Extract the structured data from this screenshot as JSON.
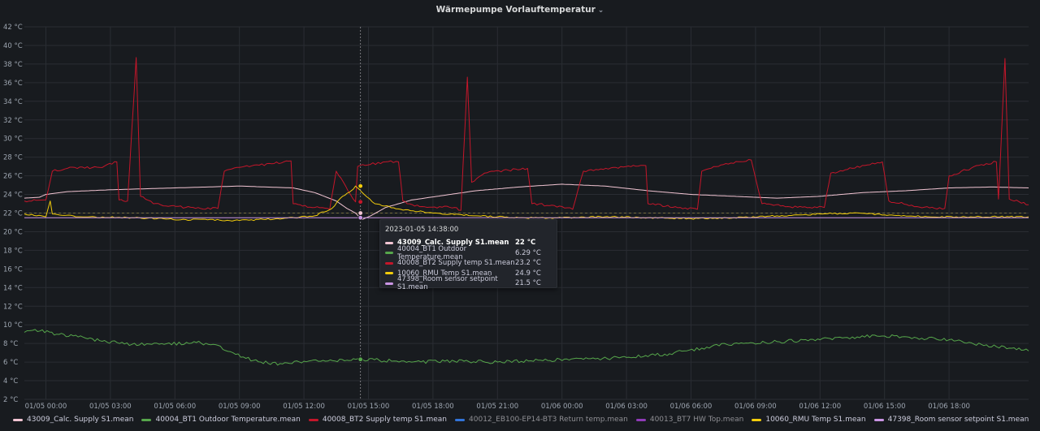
{
  "panel": {
    "title": "Wärmepumpe Vorlauftemperatur",
    "title_chevron": "⌄"
  },
  "chart_data": {
    "type": "line",
    "title": "Wärmepumpe Vorlauftemperatur",
    "y_unit": "°C",
    "ylim": [
      2,
      42
    ],
    "y_ticks": [
      "2 °C",
      "4 °C",
      "6 °C",
      "8 °C",
      "10 °C",
      "12 °C",
      "14 °C",
      "16 °C",
      "18 °C",
      "20 °C",
      "22 °C",
      "24 °C",
      "26 °C",
      "28 °C",
      "30 °C",
      "32 °C",
      "34 °C",
      "36 °C",
      "38 °C",
      "40 °C",
      "42 °C"
    ],
    "x_ticks": [
      "01/05 00:00",
      "01/05 03:00",
      "01/05 06:00",
      "01/05 09:00",
      "01/05 12:00",
      "01/05 15:00",
      "01/05 18:00",
      "01/05 21:00",
      "01/06 00:00",
      "01/06 03:00",
      "01/06 06:00",
      "01/06 09:00",
      "01/06 12:00",
      "01/06 15:00",
      "01/06 18:00"
    ],
    "x_range_hours": [
      -1.0,
      45.7
    ],
    "grid": true,
    "legend_position": "bottom",
    "series": [
      {
        "name": "43009_Calc. Supply S1.mean",
        "color": "#f2c5d3",
        "points": [
          [
            -1.0,
            23.6
          ],
          [
            -0.3,
            23.7
          ],
          [
            0.0,
            24.0
          ],
          [
            1.0,
            24.3
          ],
          [
            3.0,
            24.5
          ],
          [
            6.0,
            24.7
          ],
          [
            9.0,
            24.9
          ],
          [
            11.5,
            24.7
          ],
          [
            12.5,
            24.2
          ],
          [
            13.5,
            23.3
          ],
          [
            14.0,
            22.5
          ],
          [
            14.4,
            22.0
          ],
          [
            14.7,
            21.3
          ],
          [
            15.1,
            21.7
          ],
          [
            15.8,
            22.6
          ],
          [
            17.0,
            23.4
          ],
          [
            18.5,
            23.9
          ],
          [
            20.0,
            24.4
          ],
          [
            22.0,
            24.8
          ],
          [
            24.0,
            25.1
          ],
          [
            26.0,
            24.9
          ],
          [
            28.0,
            24.4
          ],
          [
            30.0,
            24.0
          ],
          [
            32.0,
            23.8
          ],
          [
            34.0,
            23.6
          ],
          [
            36.0,
            23.8
          ],
          [
            38.0,
            24.2
          ],
          [
            40.0,
            24.4
          ],
          [
            42.0,
            24.7
          ],
          [
            44.0,
            24.8
          ],
          [
            45.7,
            24.7
          ]
        ]
      },
      {
        "name": "40004_BT1 Outdoor Temperature.mean",
        "color": "#56a64b",
        "points": [
          [
            -1.0,
            9.2
          ],
          [
            -0.5,
            9.5
          ],
          [
            0.5,
            9.0
          ],
          [
            1.5,
            8.7
          ],
          [
            2.5,
            8.3
          ],
          [
            4.0,
            7.9
          ],
          [
            5.5,
            7.9
          ],
          [
            7.0,
            8.1
          ],
          [
            8.0,
            7.8
          ],
          [
            8.7,
            7.0
          ],
          [
            9.3,
            6.4
          ],
          [
            10.0,
            6.0
          ],
          [
            11.0,
            5.8
          ],
          [
            12.0,
            6.1
          ],
          [
            13.0,
            6.1
          ],
          [
            14.0,
            6.2
          ],
          [
            14.4,
            6.3
          ],
          [
            15.5,
            6.2
          ],
          [
            17.0,
            6.0
          ],
          [
            19.0,
            6.1
          ],
          [
            21.0,
            6.0
          ],
          [
            23.0,
            6.2
          ],
          [
            25.0,
            6.3
          ],
          [
            27.0,
            6.5
          ],
          [
            29.0,
            6.9
          ],
          [
            30.5,
            7.5
          ],
          [
            32.0,
            8.0
          ],
          [
            34.0,
            8.2
          ],
          [
            36.0,
            8.4
          ],
          [
            37.5,
            8.7
          ],
          [
            39.0,
            8.8
          ],
          [
            40.5,
            8.6
          ],
          [
            42.0,
            8.4
          ],
          [
            43.5,
            7.9
          ],
          [
            44.8,
            7.5
          ],
          [
            45.7,
            7.2
          ]
        ]
      },
      {
        "name": "40008_BT2 Supply temp S1.mean",
        "color": "#c4162a",
        "points": [
          [
            -1.0,
            23.3
          ],
          [
            0.0,
            23.4
          ],
          [
            0.3,
            26.5
          ],
          [
            1.0,
            26.8
          ],
          [
            2.5,
            26.9
          ],
          [
            3.3,
            27.5
          ],
          [
            3.4,
            23.4
          ],
          [
            3.8,
            23.3
          ],
          [
            4.2,
            38.7
          ],
          [
            4.4,
            23.8
          ],
          [
            5.0,
            23.0
          ],
          [
            6.5,
            22.6
          ],
          [
            8.0,
            22.5
          ],
          [
            8.3,
            26.5
          ],
          [
            9.0,
            26.9
          ],
          [
            10.5,
            27.3
          ],
          [
            11.4,
            27.6
          ],
          [
            11.5,
            23.0
          ],
          [
            12.5,
            22.6
          ],
          [
            13.2,
            22.4
          ],
          [
            13.5,
            26.5
          ],
          [
            14.5,
            27.0
          ],
          [
            15.8,
            27.5
          ],
          [
            16.4,
            27.5
          ],
          [
            16.6,
            23.3
          ],
          [
            16.8,
            23.0
          ],
          [
            14.4,
            23.2
          ],
          [
            17.5,
            22.7
          ],
          [
            19.0,
            22.6
          ],
          [
            19.3,
            22.3
          ],
          [
            19.6,
            36.6
          ],
          [
            19.8,
            25.3
          ],
          [
            20.4,
            26.3
          ],
          [
            21.5,
            26.6
          ],
          [
            22.4,
            26.8
          ],
          [
            22.6,
            23.0
          ],
          [
            24.0,
            22.7
          ],
          [
            24.5,
            22.4
          ],
          [
            25.0,
            26.5
          ],
          [
            26.5,
            26.9
          ],
          [
            27.9,
            27.1
          ],
          [
            28.0,
            23.0
          ],
          [
            29.5,
            22.6
          ],
          [
            30.3,
            22.4
          ],
          [
            30.5,
            26.5
          ],
          [
            31.5,
            27.2
          ],
          [
            32.8,
            27.7
          ],
          [
            33.3,
            23.0
          ],
          [
            34.5,
            22.7
          ],
          [
            36.2,
            22.6
          ],
          [
            36.5,
            26.3
          ],
          [
            37.5,
            26.8
          ],
          [
            38.9,
            27.5
          ],
          [
            39.2,
            23.3
          ],
          [
            40.5,
            22.7
          ],
          [
            41.8,
            22.5
          ],
          [
            42.0,
            26.0
          ],
          [
            43.5,
            27.2
          ],
          [
            44.2,
            27.5
          ],
          [
            44.3,
            23.5
          ],
          [
            44.6,
            38.6
          ],
          [
            44.8,
            23.5
          ],
          [
            45.7,
            22.9
          ]
        ]
      },
      {
        "name": "40012_EB100-EP14-BT3 Return temp.mean",
        "color": "#3274d9",
        "legend_dim": true,
        "points": []
      },
      {
        "name": "40013_BT7 HW Top.mean",
        "color": "#8f3bb8",
        "legend_dim": true,
        "points": []
      },
      {
        "name": "10060_RMU Temp S1.mean",
        "color": "#f2cc0c",
        "points": [
          [
            -1.0,
            21.9
          ],
          [
            -0.2,
            21.7
          ],
          [
            0.0,
            21.6
          ],
          [
            0.2,
            23.3
          ],
          [
            0.3,
            21.9
          ],
          [
            1.5,
            21.6
          ],
          [
            4.0,
            21.5
          ],
          [
            6.5,
            21.3
          ],
          [
            9.0,
            21.2
          ],
          [
            11.0,
            21.4
          ],
          [
            12.5,
            21.7
          ],
          [
            13.3,
            22.5
          ],
          [
            13.8,
            23.8
          ],
          [
            14.2,
            24.4
          ],
          [
            14.4,
            24.9
          ],
          [
            14.8,
            24.0
          ],
          [
            15.3,
            23.0
          ],
          [
            16.5,
            22.4
          ],
          [
            18.0,
            22.0
          ],
          [
            20.0,
            21.7
          ],
          [
            22.0,
            21.5
          ],
          [
            24.0,
            21.5
          ],
          [
            26.0,
            21.6
          ],
          [
            28.0,
            21.5
          ],
          [
            30.0,
            21.4
          ],
          [
            32.0,
            21.5
          ],
          [
            34.0,
            21.7
          ],
          [
            36.0,
            21.9
          ],
          [
            37.5,
            22.0
          ],
          [
            39.0,
            21.8
          ],
          [
            41.0,
            21.6
          ],
          [
            43.0,
            21.6
          ],
          [
            45.7,
            21.6
          ]
        ]
      },
      {
        "name": "47398_Room sensor setpoint S1.mean",
        "color": "#ca95e5",
        "points": [
          [
            -1.0,
            21.5
          ],
          [
            45.7,
            21.5
          ]
        ]
      }
    ],
    "threshold_dashed_y": 22,
    "cursor_x_hours": 14.63
  },
  "tooltip": {
    "time": "2023-01-05 14:38:00",
    "rows": [
      {
        "name": "43009_Calc. Supply S1.mean",
        "value": "22 °C",
        "color": "#f2c5d3",
        "bold": true
      },
      {
        "name": "40004_BT1 Outdoor Temperature.mean",
        "value": "6.29 °C",
        "color": "#56a64b",
        "bold": false
      },
      {
        "name": "40008_BT2 Supply temp S1.mean",
        "value": "23.2 °C",
        "color": "#c4162a",
        "bold": false
      },
      {
        "name": "10060_RMU Temp S1.mean",
        "value": "24.9 °C",
        "color": "#f2cc0c",
        "bold": false
      },
      {
        "name": "47398_Room sensor setpoint S1.mean",
        "value": "21.5 °C",
        "color": "#ca95e5",
        "bold": false
      }
    ]
  }
}
